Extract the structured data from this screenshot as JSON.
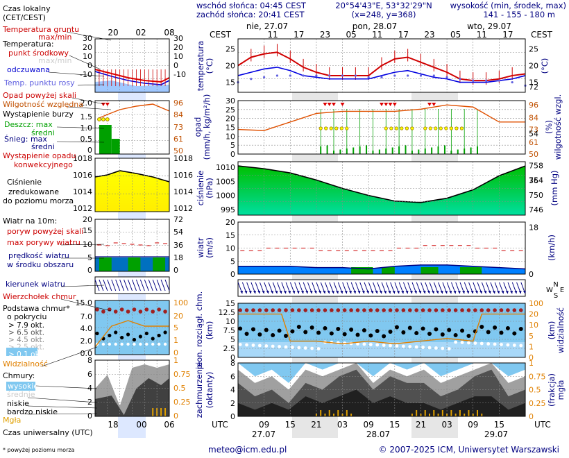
{
  "header": {
    "sunrise": "wschód słońca: 04:45 CEST",
    "sunset": "zachód słońca: 20:41 CEST",
    "coords": "20°54'43\"E, 53°32'29\"N",
    "grid": "(x=248, y=368)",
    "height_title": "wysokość (min, środek, max)",
    "height_values": "141 - 155 - 180 m"
  },
  "top_axis": {
    "cest_label": "CEST",
    "days": [
      "nie, 27.07",
      "pon, 28.07",
      "wto, 29.07"
    ],
    "hours": [
      "11",
      "17",
      "23",
      "05",
      "11",
      "17",
      "23",
      "05",
      "11",
      "17"
    ]
  },
  "bottom_axis": {
    "utc_label": "UTC",
    "hours": [
      "09",
      "15",
      "21",
      "03",
      "09",
      "15",
      "21",
      "03",
      "09",
      "15"
    ],
    "dates": [
      "27.07",
      "28.07",
      "29.07"
    ]
  },
  "legend": {
    "local_time": "Czas lokalny",
    "local_time2": "(CET/CEST)",
    "local_hours": [
      "20",
      "02",
      "08"
    ],
    "soil_temp": "Temperatura gruntu",
    "max_min": "max/min",
    "temp": "Temperatura:",
    "mid_point": "punkt środkowy",
    "max_min2": "max/min",
    "perceived": "odczuwana",
    "dew": "Temp. punktu rosy",
    "precip_above": "Opad powyżej skali",
    "rh": "Wilgotność względna",
    "storm": "Wystąpienie burzy",
    "rain": "Deszcz: max",
    "mean": "średni",
    "snow": "Śnieg: max",
    "mean2": "średni",
    "conv1": "Wystąpienie opadu",
    "conv2": "konwekcyjnego",
    "pressure1": "Ciśnienie",
    "pressure2": "zredukowane",
    "pressure3": "do poziomu morza",
    "wind10": "Wiatr na 10m:",
    "gust_above": "poryw powyżej skali",
    "gust_max": "max porywy wiatru",
    "wind_speed1": "prędkość wiatru",
    "wind_speed2": "w środku obszaru",
    "wind_dir": "kierunek wiatru",
    "cloud_top": "Wierzchołek chmur",
    "cloud_base1": "Podstawa chmur*",
    "cloud_base2": "o pokryciu",
    "okt": [
      "> 7.9 okt.",
      "> 6.5 okt.",
      "> 4.5 okt.",
      "> 2.5 okt.",
      "> 0.1 okt."
    ],
    "visibility": "Widzialność",
    "clouds": "Chmury:",
    "cl_high": "wysokie",
    "cl_mid": "średnie",
    "cl_low": "niskie",
    "cl_vlow": "bardzo niskie",
    "fog": "Mgła",
    "utc_time": "Czas uniwersalny (UTC)",
    "utc_hours": [
      "18",
      "00",
      "06"
    ]
  },
  "labels": {
    "temp": [
      "temperatura",
      "(°C)"
    ],
    "precip": [
      "opad",
      "(mm/h, kg/m²/h)"
    ],
    "humidity": [
      "(%)",
      "wilgotność wzgl."
    ],
    "pressure": [
      "ciśnienie",
      "(hPa)"
    ],
    "mmhg": "(mm Hg)",
    "wind": [
      "wiatr",
      "(m/s)"
    ],
    "kmh": "(km/h)",
    "cloudbase": [
      "pion. rozciągł. chm.",
      "(km)"
    ],
    "vis": [
      "(km)",
      "widzialność"
    ],
    "cloudfrac": [
      "zachmurzenie",
      "(oktanty)"
    ],
    "fog": [
      "(frakcja)",
      "mgła"
    ],
    "compass": [
      "N",
      "W",
      "E",
      "S"
    ]
  },
  "footer": {
    "note": "* powyżej poziomu morza",
    "email": "meteo@icm.edu.pl",
    "copyright": "© 2007-2025 ICM, Uniwersytet Warszawski"
  },
  "chart_data": {
    "type": "line",
    "time_axis_utc": [
      "27.07 03:00",
      "29.07 21:00"
    ],
    "temperature": {
      "ylim": [
        12,
        28
      ],
      "ticks": [
        15,
        20,
        25
      ],
      "series": [
        {
          "x": [
            0,
            3,
            6,
            9,
            12,
            15,
            18,
            21,
            24,
            27,
            30,
            33,
            36,
            39,
            42,
            45,
            48,
            51,
            54,
            57,
            60,
            63,
            66
          ],
          "values": [
            20,
            22.5,
            23.5,
            24,
            22,
            19.5,
            18,
            17,
            17,
            17,
            17,
            20,
            22,
            22.5,
            21,
            19.5,
            18,
            16,
            15.5,
            15.5,
            16,
            17,
            17.5
          ]
        },
        {
          "x": [
            0,
            3,
            6,
            9,
            12,
            15,
            18,
            21,
            24,
            27,
            30,
            33,
            36,
            39,
            42,
            45,
            48,
            51,
            54,
            57,
            60,
            63,
            66
          ],
          "values": [
            17,
            18,
            19,
            19.5,
            18.5,
            17,
            16.5,
            16,
            16,
            16,
            16,
            17,
            18,
            18.5,
            17.5,
            16.5,
            16,
            15,
            15,
            15,
            15.5,
            16,
            17
          ]
        },
        {
          "x": [
            0,
            3,
            6,
            9,
            12,
            15,
            18,
            21,
            24,
            27,
            30,
            33,
            36,
            39,
            42,
            45,
            48,
            51,
            54,
            57,
            60,
            63,
            66
          ],
          "values": [
            15,
            16,
            16.5,
            17,
            17,
            17,
            17,
            17,
            17,
            17,
            16.5,
            16.5,
            17,
            17,
            17,
            17,
            16.5,
            16,
            15.5,
            15.5,
            15.5,
            15,
            14
          ]
        }
      ]
    },
    "precipitation": {
      "ylim": [
        0,
        30
      ],
      "ticks": [
        0,
        5,
        10,
        15,
        20,
        25,
        30
      ],
      "humidity_ticks": [
        50,
        61,
        73,
        84,
        96
      ]
    },
    "pressure": {
      "ylim": [
        993,
        1012
      ],
      "ticks": [
        995,
        1000,
        1005,
        1010
      ],
      "mmhg_ticks": [
        746,
        750,
        754,
        758
      ],
      "x": [
        0,
        6,
        12,
        18,
        24,
        30,
        36,
        42,
        48,
        54,
        60,
        66
      ],
      "values": [
        1010.5,
        1009.5,
        1008,
        1005.5,
        1002.5,
        1000,
        998,
        997.5,
        999,
        1002,
        1007,
        1010.5
      ]
    },
    "wind": {
      "ylim": [
        0,
        20
      ],
      "ticks": [
        0,
        5,
        10,
        15,
        20
      ],
      "kmh_ticks": [
        0,
        18,
        36,
        54,
        72
      ],
      "x": [
        0,
        6,
        12,
        18,
        24,
        30,
        36,
        42,
        48,
        54,
        60,
        66
      ],
      "speed": [
        3,
        3,
        3,
        2.5,
        2.5,
        2,
        3,
        3.5,
        3.5,
        3,
        2.5,
        2
      ],
      "gust": [
        10,
        11,
        11,
        10,
        10,
        10,
        11,
        12,
        12,
        11,
        10,
        8
      ]
    },
    "cloudbase": {
      "ylim": [
        0,
        15
      ],
      "ticks": [
        0,
        2.5,
        5,
        7.5,
        10,
        12.5,
        15
      ],
      "vis_ticks": [
        0,
        1,
        5,
        10,
        20,
        100
      ]
    },
    "cloudfrac": {
      "ylim": [
        0,
        8
      ],
      "ticks": [
        0,
        2,
        4,
        6,
        8
      ],
      "fog_ticks": [
        0,
        0.25,
        0.5,
        0.75,
        1
      ]
    }
  }
}
